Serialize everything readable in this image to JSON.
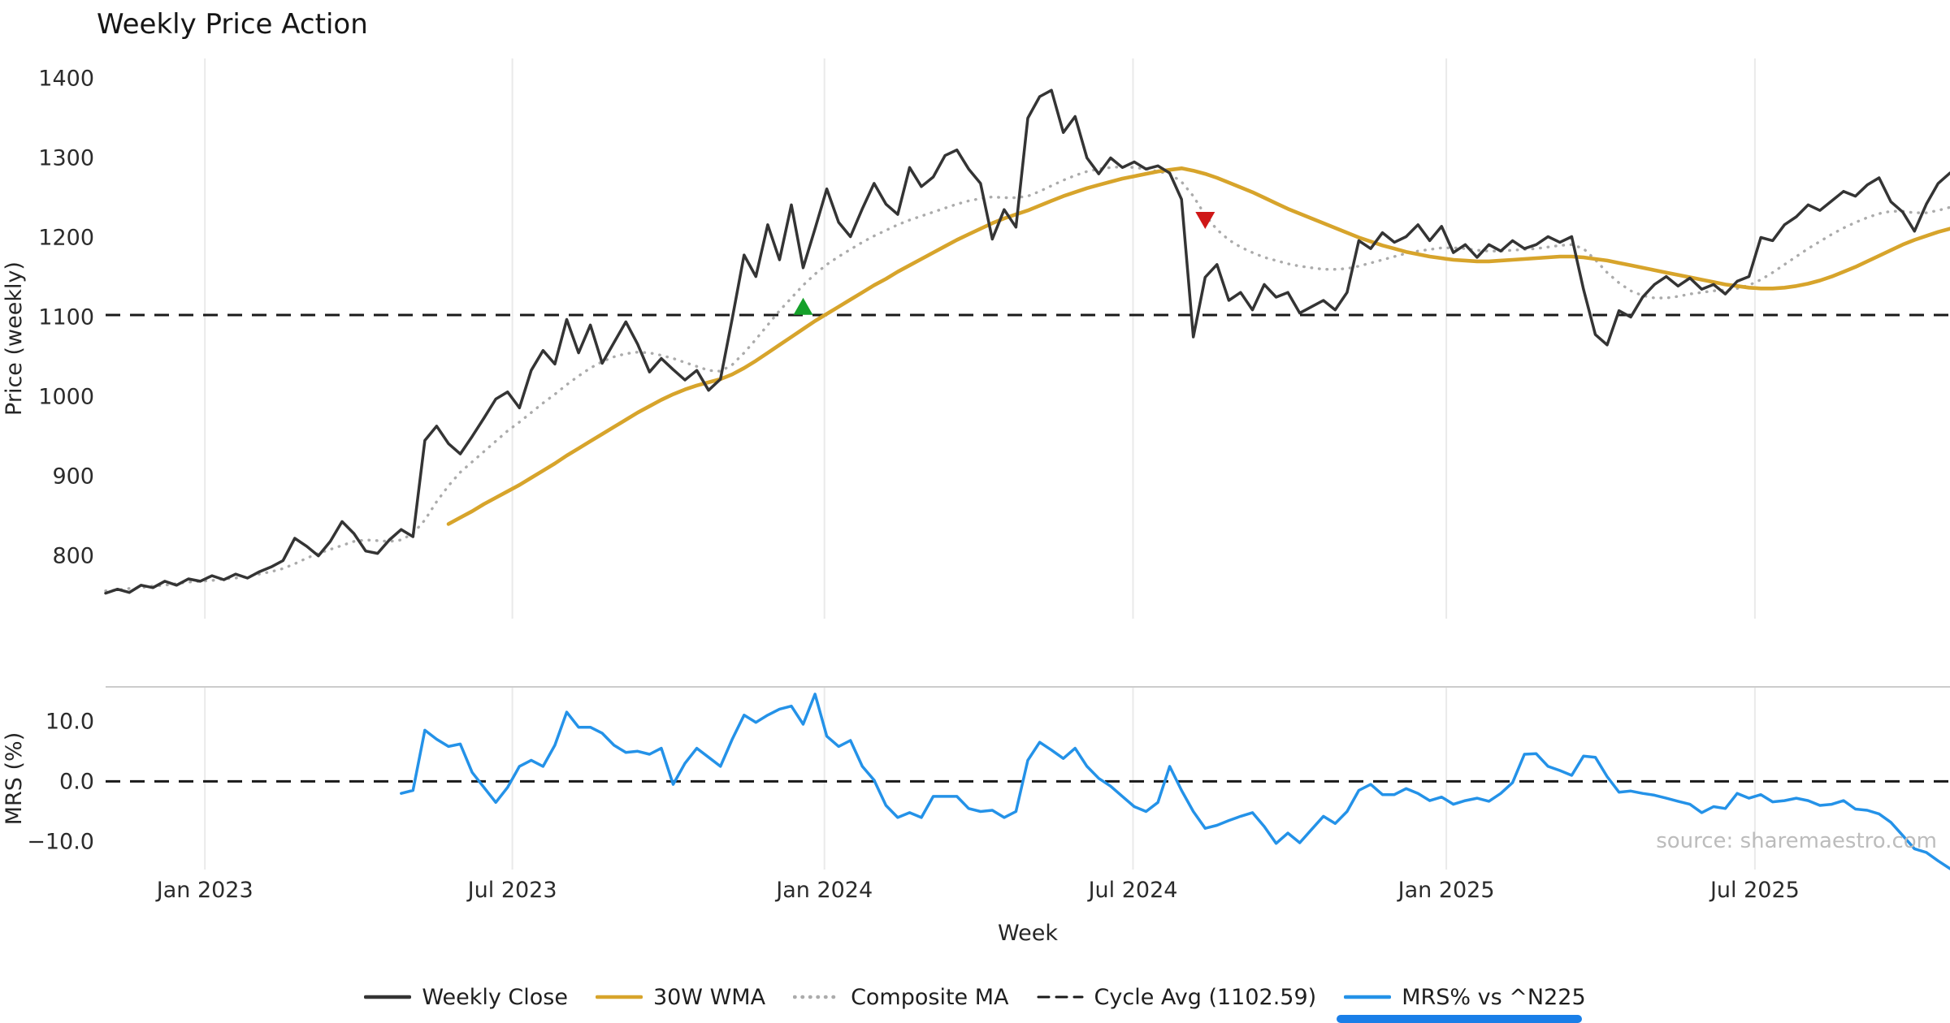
{
  "title": "Weekly Price Action",
  "source_note": "source: sharemaestro.com",
  "colors": {
    "weekly_close": "#343434",
    "wma_30w": "#d7a42b",
    "composite_ma": "#ababab",
    "cycle_avg": "#1a1a1a",
    "mrs": "#2492e8",
    "buy_marker": "#15a02a",
    "sell_marker": "#cf1818",
    "grid": "#eaeaea",
    "panel_border": "#cccccc",
    "scrollbar": "#1a7fe8"
  },
  "legend": [
    {
      "label": "Weekly Close",
      "style": "solid",
      "color": "#343434"
    },
    {
      "label": "30W WMA",
      "style": "solid",
      "color": "#d7a42b"
    },
    {
      "label": "Composite MA",
      "style": "dotted",
      "color": "#ababab"
    },
    {
      "label": "Cycle Avg (1102.59)",
      "style": "dashed",
      "color": "#1a1a1a"
    },
    {
      "label": "MRS% vs ^N225",
      "style": "solid",
      "color": "#2492e8"
    }
  ],
  "chart_data": [
    {
      "type": "line",
      "panel": "price",
      "title": "Weekly Price Action",
      "xlabel": "Week",
      "ylabel": "Price (weekly)",
      "ylim": [
        721,
        1425
      ],
      "grid": "vertical-only",
      "yticks": [
        {
          "v": 800,
          "label": "800"
        },
        {
          "v": 900,
          "label": "900"
        },
        {
          "v": 1000,
          "label": "1000"
        },
        {
          "v": 1100,
          "label": "1100"
        },
        {
          "v": 1200,
          "label": "1200"
        },
        {
          "v": 1300,
          "label": "1300"
        },
        {
          "v": 1400,
          "label": "1400"
        }
      ],
      "x_ticks": [
        {
          "label": "Jan 2023",
          "week": 8.4
        },
        {
          "label": "Jul 2023",
          "week": 34.4
        },
        {
          "label": "Jan 2024",
          "week": 60.8
        },
        {
          "label": "Jul 2024",
          "week": 86.9
        },
        {
          "label": "Jan 2025",
          "week": 113.4
        },
        {
          "label": "Jul 2025",
          "week": 139.5
        }
      ],
      "n_weeks": 157,
      "cycle_avg": 1102.59,
      "series": [
        {
          "name": "Weekly Close",
          "color": "#343434",
          "style": "solid",
          "start_week": 0,
          "values": [
            753,
            758,
            754,
            763,
            760,
            768,
            763,
            771,
            768,
            775,
            770,
            777,
            772,
            780,
            786,
            794,
            822,
            812,
            800,
            818,
            843,
            828,
            806,
            803,
            820,
            833,
            824,
            945,
            963,
            941,
            928,
            950,
            973,
            997,
            1006,
            986,
            1033,
            1058,
            1041,
            1097,
            1055,
            1090,
            1042,
            1068,
            1094,
            1066,
            1031,
            1048,
            1034,
            1021,
            1033,
            1008,
            1022,
            1098,
            1178,
            1151,
            1216,
            1172,
            1241,
            1162,
            1211,
            1261,
            1219,
            1201,
            1236,
            1268,
            1242,
            1229,
            1288,
            1264,
            1276,
            1303,
            1310,
            1286,
            1268,
            1198,
            1235,
            1213,
            1350,
            1377,
            1385,
            1332,
            1352,
            1300,
            1280,
            1300,
            1288,
            1295,
            1286,
            1290,
            1281,
            1248,
            1075,
            1150,
            1166,
            1121,
            1131,
            1109,
            1141,
            1125,
            1131,
            1105,
            1113,
            1121,
            1109,
            1131,
            1196,
            1186,
            1206,
            1194,
            1201,
            1216,
            1196,
            1214,
            1181,
            1191,
            1175,
            1191,
            1183,
            1196,
            1186,
            1191,
            1201,
            1194,
            1201,
            1135,
            1078,
            1065,
            1108,
            1100,
            1125,
            1141,
            1151,
            1139,
            1149,
            1135,
            1141,
            1129,
            1145,
            1151,
            1200,
            1196,
            1216,
            1226,
            1241,
            1234,
            1246,
            1258,
            1252,
            1266,
            1275,
            1245,
            1232,
            1208,
            1242,
            1268,
            1281
          ]
        },
        {
          "name": "30W WMA",
          "color": "#d7a42b",
          "style": "solid",
          "start_week": 29,
          "values": [
            840,
            848,
            856,
            865,
            873,
            881,
            889,
            898,
            907,
            916,
            926,
            935,
            944,
            953,
            962,
            971,
            980,
            988,
            996,
            1003,
            1009,
            1014,
            1018,
            1022,
            1028,
            1036,
            1045,
            1055,
            1065,
            1075,
            1085,
            1095,
            1104,
            1113,
            1122,
            1131,
            1140,
            1148,
            1157,
            1165,
            1173,
            1181,
            1189,
            1197,
            1204,
            1211,
            1218,
            1224,
            1229,
            1234,
            1240,
            1246,
            1252,
            1257,
            1262,
            1266,
            1270,
            1274,
            1277,
            1280,
            1283,
            1285,
            1287,
            1284,
            1280,
            1275,
            1269,
            1263,
            1257,
            1250,
            1243,
            1236,
            1230,
            1224,
            1218,
            1212,
            1206,
            1200,
            1195,
            1190,
            1186,
            1182,
            1179,
            1176,
            1174,
            1172,
            1171,
            1170,
            1170,
            1171,
            1172,
            1173,
            1174,
            1175,
            1176,
            1176,
            1175,
            1173,
            1171,
            1168,
            1165,
            1162,
            1159,
            1156,
            1153,
            1150,
            1147,
            1144,
            1141,
            1139,
            1137,
            1136,
            1136,
            1137,
            1139,
            1142,
            1146,
            1151,
            1157,
            1163,
            1170,
            1177,
            1184,
            1191,
            1197,
            1202,
            1207,
            1211
          ]
        },
        {
          "name": "Composite MA",
          "color": "#ababab",
          "style": "dotted",
          "start_week": 0,
          "values": [
            756,
            757,
            759,
            760,
            762,
            763,
            765,
            767,
            768,
            769,
            771,
            772,
            774,
            777,
            780,
            784,
            790,
            797,
            803,
            808,
            813,
            818,
            820,
            819,
            818,
            820,
            828,
            845,
            868,
            888,
            905,
            918,
            931,
            944,
            957,
            968,
            980,
            992,
            1003,
            1015,
            1026,
            1036,
            1044,
            1050,
            1054,
            1056,
            1055,
            1052,
            1048,
            1043,
            1038,
            1033,
            1032,
            1040,
            1055,
            1072,
            1090,
            1108,
            1124,
            1140,
            1154,
            1166,
            1176,
            1185,
            1194,
            1202,
            1209,
            1216,
            1222,
            1227,
            1232,
            1237,
            1242,
            1246,
            1249,
            1251,
            1250,
            1250,
            1252,
            1258,
            1265,
            1272,
            1278,
            1283,
            1286,
            1288,
            1289,
            1288,
            1286,
            1283,
            1280,
            1270,
            1252,
            1228,
            1210,
            1197,
            1188,
            1181,
            1175,
            1171,
            1167,
            1164,
            1162,
            1160,
            1160,
            1161,
            1164,
            1168,
            1172,
            1176,
            1180,
            1183,
            1185,
            1187,
            1187,
            1186,
            1184,
            1183,
            1183,
            1184,
            1185,
            1186,
            1188,
            1190,
            1191,
            1186,
            1172,
            1156,
            1143,
            1133,
            1127,
            1124,
            1124,
            1126,
            1129,
            1131,
            1133,
            1134,
            1136,
            1140,
            1147,
            1156,
            1166,
            1176,
            1186,
            1195,
            1204,
            1212,
            1219,
            1225,
            1230,
            1233,
            1233,
            1231,
            1231,
            1234,
            1238
          ]
        }
      ],
      "markers": [
        {
          "name": "buy-signal",
          "shape": "triangle-up",
          "color": "#15a02a",
          "week": 59,
          "price": 1112
        },
        {
          "name": "sell-signal",
          "shape": "triangle-down",
          "color": "#cf1818",
          "week": 93,
          "price": 1223
        }
      ]
    },
    {
      "type": "line",
      "panel": "mrs",
      "ylabel": "MRS (%)",
      "ylim": [
        -14.65,
        15.7
      ],
      "zero_line": 0,
      "yticks": [
        {
          "v": 10,
          "label": "10.0"
        },
        {
          "v": 0,
          "label": "0.0"
        },
        {
          "v": -10,
          "label": "−10.0"
        }
      ],
      "series": [
        {
          "name": "MRS% vs ^N225",
          "color": "#2492e8",
          "style": "solid",
          "start_week": 25,
          "values": [
            -2,
            -1.5,
            8.5,
            7,
            5.8,
            6.2,
            1.5,
            -1,
            -3.5,
            -1,
            2.5,
            3.5,
            2.5,
            6,
            11.5,
            9,
            9,
            8,
            6,
            4.8,
            5,
            4.5,
            5.5,
            -0.5,
            3,
            5.5,
            4,
            2.5,
            7,
            11,
            9.8,
            11,
            12,
            12.5,
            9.5,
            14.5,
            7.5,
            5.8,
            6.8,
            2.5,
            0.2,
            -4,
            -6,
            -5.2,
            -6,
            -2.5,
            -2.5,
            -2.5,
            -4.5,
            -5,
            -4.8,
            -6,
            -5,
            3.5,
            6.5,
            5.2,
            3.8,
            5.5,
            2.5,
            0.5,
            -0.8,
            -2.5,
            -4.2,
            -5,
            -3.5,
            2.5,
            -1.5,
            -5,
            -7.8,
            -7.3,
            -6.5,
            -5.8,
            -5.2,
            -7.5,
            -10.3,
            -8.6,
            -10.2,
            -8,
            -5.8,
            -7,
            -5,
            -1.5,
            -0.5,
            -2.2,
            -2.2,
            -1.2,
            -2,
            -3.2,
            -2.6,
            -3.8,
            -3.2,
            -2.8,
            -3.3,
            -2,
            -0.2,
            4.5,
            4.6,
            2.5,
            1.8,
            1,
            4.2,
            4,
            0.8,
            -1.8,
            -1.6,
            -2,
            -2.3,
            -2.8,
            -3.3,
            -3.8,
            -5.2,
            -4.2,
            -4.5,
            -2,
            -2.8,
            -2.2,
            -3.4,
            -3.2,
            -2.8,
            -3.2,
            -4,
            -3.8,
            -3.2,
            -4.6,
            -4.8,
            -5.4,
            -6.8,
            -9,
            -11.2,
            -11.8,
            -13.2,
            -14.5
          ]
        }
      ]
    }
  ]
}
